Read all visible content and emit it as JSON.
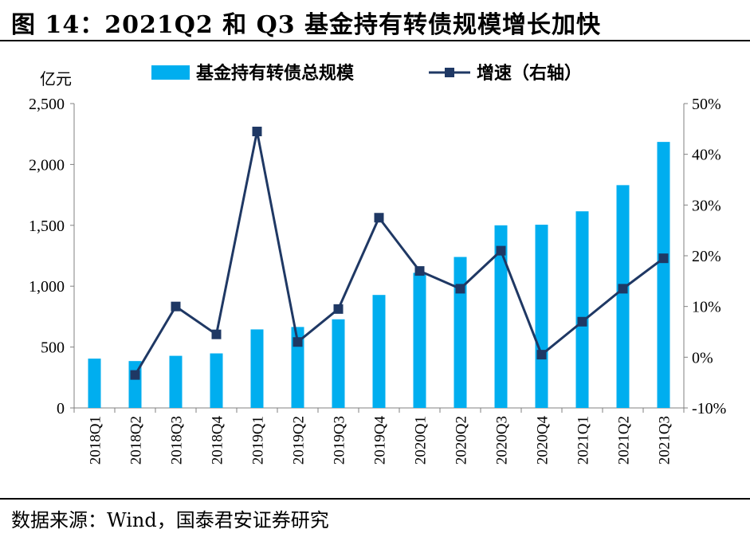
{
  "header": {
    "title": "图 14：2021Q2 和 Q3 基金持有转债规模增长加快"
  },
  "footer": {
    "source": "数据来源：Wind，国泰君安证券研究"
  },
  "chart_data": {
    "type": "bar+line",
    "categories": [
      "2018Q1",
      "2018Q2",
      "2018Q3",
      "2018Q4",
      "2019Q1",
      "2019Q2",
      "2019Q3",
      "2019Q4",
      "2020Q1",
      "2020Q2",
      "2020Q3",
      "2020Q4",
      "2021Q1",
      "2021Q2",
      "2021Q3"
    ],
    "series": [
      {
        "name": "基金持有转债总规模",
        "type": "bar",
        "axis": "left",
        "color": "#00AEEF",
        "values": [
          405,
          385,
          428,
          448,
          645,
          665,
          728,
          928,
          1110,
          1240,
          1500,
          1505,
          1615,
          1830,
          2185
        ]
      },
      {
        "name": "增速（右轴）",
        "type": "line",
        "axis": "right",
        "color": "#1F3864",
        "values": [
          null,
          -3.5,
          10.0,
          4.5,
          44.5,
          3.0,
          9.5,
          27.5,
          17.0,
          13.5,
          21.0,
          0.5,
          7.0,
          13.5,
          19.5
        ]
      }
    ],
    "yleft": {
      "unit": "亿元",
      "ylim": [
        0,
        2500
      ],
      "ticks": [
        "0",
        "500",
        "1,000",
        "1,500",
        "2,000",
        "2,500"
      ],
      "tick_values": [
        0,
        500,
        1000,
        1500,
        2000,
        2500
      ]
    },
    "yright": {
      "ylim": [
        -10,
        50
      ],
      "ticks": [
        "-10%",
        "0%",
        "10%",
        "20%",
        "30%",
        "40%",
        "50%"
      ],
      "tick_values": [
        -10,
        0,
        10,
        20,
        30,
        40,
        50
      ]
    },
    "legend": "top",
    "grid": false
  }
}
